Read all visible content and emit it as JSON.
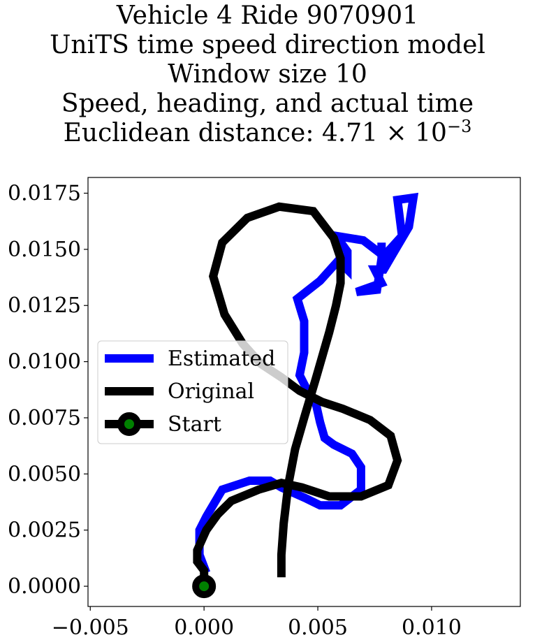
{
  "title": {
    "line1": "Vehicle 4 Ride 9070901",
    "line2": "UniTS time speed direction model",
    "line3": "Window size 10",
    "line4": "Speed, heading, and actual time",
    "line5_prefix": "Euclidean distance: 4.71 × 10",
    "line5_exp": "−3"
  },
  "chart_data": {
    "type": "line",
    "xlim": [
      -0.0051,
      0.0139
    ],
    "ylim": [
      -0.0009,
      0.0182
    ],
    "xticks": [
      -0.005,
      0.0,
      0.005,
      0.01
    ],
    "xtick_labels": [
      "−0.005",
      "0.000",
      "0.005",
      "0.010"
    ],
    "yticks": [
      0.0,
      0.0025,
      0.005,
      0.0075,
      0.01,
      0.0125,
      0.015,
      0.0175
    ],
    "ytick_labels": [
      "0.0000",
      "0.0025",
      "0.0050",
      "0.0075",
      "0.0100",
      "0.0125",
      "0.0150",
      "0.0175"
    ],
    "grid": false,
    "legend_placement": "center-left",
    "series": [
      {
        "name": "Estimated",
        "color": "#0000ff",
        "points": [
          [
            0.0001,
            0.0006
          ],
          [
            -0.0002,
            0.0014
          ],
          [
            -0.0002,
            0.0025
          ],
          [
            0.0001,
            0.0031
          ],
          [
            0.0008,
            0.0043
          ],
          [
            0.002,
            0.0047
          ],
          [
            0.0029,
            0.0047
          ],
          [
            0.0034,
            0.0044
          ],
          [
            0.0045,
            0.0039
          ],
          [
            0.0051,
            0.0036
          ],
          [
            0.006,
            0.0036
          ],
          [
            0.0069,
            0.0043
          ],
          [
            0.0069,
            0.0053
          ],
          [
            0.0065,
            0.0059
          ],
          [
            0.0057,
            0.0063
          ],
          [
            0.0053,
            0.0066
          ],
          [
            0.0051,
            0.0073
          ],
          [
            0.0049,
            0.0082
          ],
          [
            0.0046,
            0.0086
          ],
          [
            0.0042,
            0.0094
          ],
          [
            0.0044,
            0.0104
          ],
          [
            0.0044,
            0.0118
          ],
          [
            0.0041,
            0.0128
          ],
          [
            0.0051,
            0.0136
          ],
          [
            0.0059,
            0.0145
          ],
          [
            0.0063,
            0.0141
          ],
          [
            0.0063,
            0.0149
          ],
          [
            0.0058,
            0.0156
          ],
          [
            0.007,
            0.0154
          ],
          [
            0.0079,
            0.0147
          ],
          [
            0.0087,
            0.0156
          ],
          [
            0.0085,
            0.0172
          ],
          [
            0.0092,
            0.0173
          ],
          [
            0.009,
            0.016
          ],
          [
            0.0083,
            0.0148
          ],
          [
            0.0079,
            0.0141
          ],
          [
            0.0075,
            0.0141
          ],
          [
            0.0078,
            0.0135
          ],
          [
            0.0067,
            0.0131
          ],
          [
            0.0076,
            0.0132
          ],
          [
            0.0078,
            0.0146
          ],
          [
            0.0078,
            0.0153
          ]
        ]
      },
      {
        "name": "Original",
        "color": "#000000",
        "points": [
          [
            0.0034,
            0.0004
          ],
          [
            0.0034,
            0.0014
          ],
          [
            0.0035,
            0.0028
          ],
          [
            0.0037,
            0.0045
          ],
          [
            0.004,
            0.0061
          ],
          [
            0.0044,
            0.0075
          ],
          [
            0.0049,
            0.0092
          ],
          [
            0.0055,
            0.0113
          ],
          [
            0.0058,
            0.0125
          ],
          [
            0.006,
            0.0135
          ],
          [
            0.006,
            0.0146
          ],
          [
            0.0057,
            0.0155
          ],
          [
            0.0048,
            0.0167
          ],
          [
            0.0033,
            0.0169
          ],
          [
            0.0019,
            0.0164
          ],
          [
            0.0008,
            0.0153
          ],
          [
            0.0004,
            0.0138
          ],
          [
            0.0009,
            0.0121
          ],
          [
            0.0017,
            0.0108
          ],
          [
            0.0025,
            0.0099
          ],
          [
            0.0034,
            0.0093
          ],
          [
            0.0042,
            0.0087
          ],
          [
            0.0052,
            0.0082
          ],
          [
            0.0061,
            0.0079
          ],
          [
            0.0073,
            0.0074
          ],
          [
            0.0082,
            0.0067
          ],
          [
            0.0085,
            0.0056
          ],
          [
            0.0081,
            0.0045
          ],
          [
            0.0069,
            0.004
          ],
          [
            0.0055,
            0.004
          ],
          [
            0.0043,
            0.0044
          ],
          [
            0.0034,
            0.0046
          ],
          [
            0.0024,
            0.0043
          ],
          [
            0.0012,
            0.0038
          ],
          [
            0.0006,
            0.0032
          ],
          [
            0.0001,
            0.0025
          ],
          [
            -0.0003,
            0.0016
          ],
          [
            -0.0003,
            0.0011
          ],
          [
            0.0,
            0.0007
          ],
          [
            0.0,
            0.0
          ]
        ]
      }
    ],
    "start": {
      "label": "Start",
      "point": [
        0.0,
        0.0
      ],
      "fill": "#008000",
      "edge": "#000000"
    },
    "fade_segment_note": "",
    "legend": [
      "Estimated",
      "Original",
      "Start"
    ]
  }
}
